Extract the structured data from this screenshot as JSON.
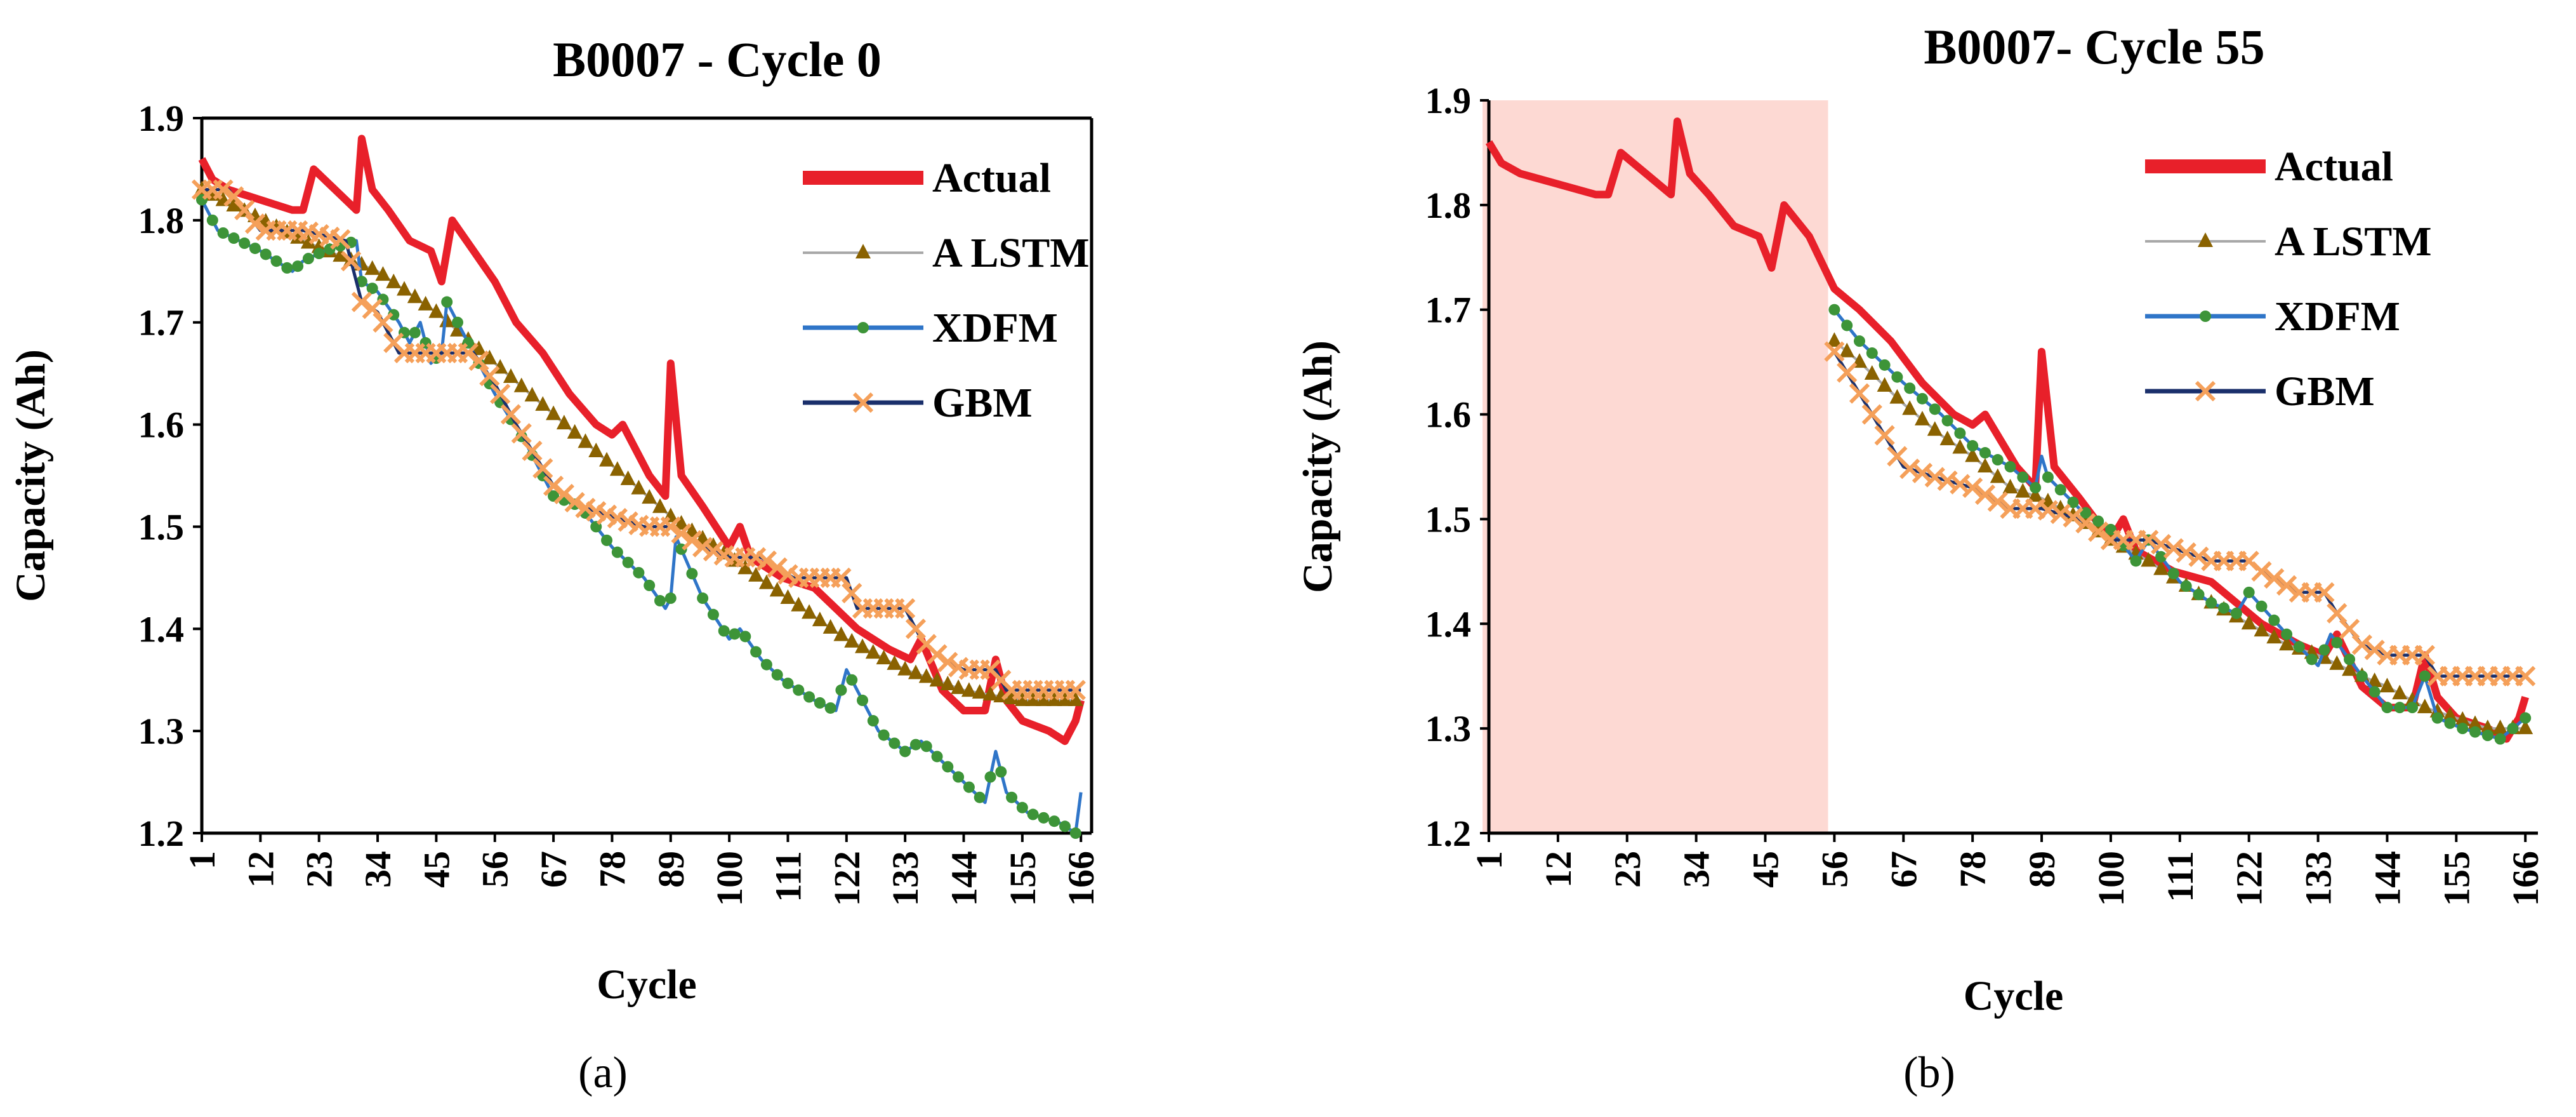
{
  "figure": {
    "panels": [
      "a",
      "b"
    ]
  },
  "chart_data": [
    {
      "type": "line",
      "panel": "a",
      "caption": "(a)",
      "title": "B0007 - Cycle 0",
      "xlabel": "Cycle",
      "ylabel": "Capacity (Ah)",
      "xlim": [
        1,
        168
      ],
      "ylim": [
        1.2,
        1.9
      ],
      "yticks": [
        "1.2",
        "1.3",
        "1.4",
        "1.5",
        "1.6",
        "1.7",
        "1.8",
        "1.9"
      ],
      "xticks": [
        "1",
        "12",
        "23",
        "34",
        "45",
        "56",
        "67",
        "78",
        "89",
        "100",
        "111",
        "122",
        "133",
        "144",
        "155",
        "166"
      ],
      "highlight_range": null,
      "legend": [
        "Actual",
        "A LSTM",
        "XDFM",
        "GBM"
      ],
      "colors": {
        "Actual": "#e8202a",
        "A LSTM": "#8a6200",
        "XDFM": "#3d9438",
        "GBM": "#f5a05a",
        "XDFM_line": "#2f75c8",
        "GBM_line": "#1a2f6b",
        "ALSTM_line": "#a8a8a8"
      },
      "series": [
        {
          "name": "Actual",
          "x": [
            1,
            3,
            6,
            12,
            18,
            20,
            22,
            26,
            30,
            31,
            33,
            36,
            40,
            44,
            46,
            48,
            52,
            56,
            60,
            65,
            70,
            75,
            78,
            80,
            85,
            88,
            89,
            91,
            95,
            100,
            102,
            104,
            110,
            116,
            120,
            124,
            130,
            134,
            136,
            140,
            144,
            148,
            150,
            152,
            155,
            160,
            163,
            165,
            166
          ],
          "y": [
            1.86,
            1.84,
            1.83,
            1.82,
            1.81,
            1.81,
            1.85,
            1.83,
            1.81,
            1.88,
            1.83,
            1.81,
            1.78,
            1.77,
            1.74,
            1.8,
            1.77,
            1.74,
            1.7,
            1.67,
            1.63,
            1.6,
            1.59,
            1.6,
            1.55,
            1.53,
            1.66,
            1.55,
            1.52,
            1.48,
            1.5,
            1.47,
            1.45,
            1.44,
            1.42,
            1.4,
            1.38,
            1.37,
            1.39,
            1.34,
            1.32,
            1.32,
            1.37,
            1.33,
            1.31,
            1.3,
            1.29,
            1.31,
            1.33
          ]
        },
        {
          "name": "A LSTM",
          "x": [
            1,
            20,
            34,
            45,
            56,
            67,
            78,
            89,
            100,
            111,
            122,
            133,
            144,
            155,
            166
          ],
          "y": [
            1.83,
            1.78,
            1.75,
            1.71,
            1.66,
            1.61,
            1.56,
            1.51,
            1.47,
            1.43,
            1.39,
            1.36,
            1.34,
            1.33,
            1.33
          ]
        },
        {
          "name": "XDFM",
          "x": [
            1,
            4,
            8,
            12,
            18,
            20,
            24,
            30,
            31,
            34,
            38,
            40,
            42,
            44,
            46,
            47,
            50,
            56,
            62,
            67,
            72,
            78,
            84,
            88,
            89,
            90,
            95,
            100,
            102,
            106,
            110,
            116,
            120,
            122,
            128,
            133,
            136,
            140,
            144,
            148,
            150,
            152,
            156,
            162,
            165,
            166
          ],
          "y": [
            1.82,
            1.79,
            1.78,
            1.77,
            1.75,
            1.76,
            1.77,
            1.78,
            1.74,
            1.73,
            1.7,
            1.68,
            1.7,
            1.66,
            1.67,
            1.72,
            1.69,
            1.63,
            1.58,
            1.53,
            1.52,
            1.48,
            1.45,
            1.42,
            1.43,
            1.49,
            1.43,
            1.39,
            1.4,
            1.37,
            1.35,
            1.33,
            1.32,
            1.36,
            1.3,
            1.28,
            1.29,
            1.27,
            1.25,
            1.23,
            1.28,
            1.24,
            1.22,
            1.21,
            1.2,
            1.24
          ]
        },
        {
          "name": "GBM",
          "x": [
            1,
            6,
            12,
            20,
            28,
            31,
            34,
            38,
            44,
            52,
            56,
            60,
            67,
            72,
            78,
            84,
            89,
            95,
            100,
            106,
            112,
            118,
            122,
            124,
            130,
            133,
            136,
            140,
            144,
            150,
            152,
            156,
            166
          ],
          "y": [
            1.83,
            1.83,
            1.79,
            1.79,
            1.78,
            1.72,
            1.71,
            1.67,
            1.67,
            1.67,
            1.64,
            1.6,
            1.54,
            1.52,
            1.51,
            1.5,
            1.5,
            1.48,
            1.47,
            1.47,
            1.45,
            1.45,
            1.45,
            1.42,
            1.42,
            1.42,
            1.39,
            1.37,
            1.36,
            1.36,
            1.34,
            1.34,
            1.34
          ]
        }
      ]
    },
    {
      "type": "line",
      "panel": "b",
      "caption": "(b)",
      "title": "B0007- Cycle 55",
      "xlabel": "Cycle",
      "ylabel": "Capacity (Ah)",
      "xlim": [
        1,
        168
      ],
      "ylim": [
        1.2,
        1.9
      ],
      "yticks": [
        "1.2",
        "1.3",
        "1.4",
        "1.5",
        "1.6",
        "1.7",
        "1.8",
        "1.9"
      ],
      "xticks": [
        "1",
        "12",
        "23",
        "34",
        "45",
        "56",
        "67",
        "78",
        "89",
        "100",
        "111",
        "122",
        "133",
        "144",
        "155",
        "166"
      ],
      "highlight_range": [
        1,
        55
      ],
      "legend": [
        "Actual",
        "A LSTM",
        "XDFM",
        "GBM"
      ],
      "colors": {
        "Actual": "#e8202a",
        "A LSTM": "#8a6200",
        "XDFM": "#3d9438",
        "GBM": "#f5a05a",
        "XDFM_line": "#2f75c8",
        "GBM_line": "#1a2f6b",
        "ALSTM_line": "#a8a8a8",
        "highlight": "#fdd9d3"
      },
      "series": [
        {
          "name": "Actual",
          "x": [
            1,
            3,
            6,
            12,
            18,
            20,
            22,
            26,
            30,
            31,
            33,
            36,
            40,
            44,
            46,
            48,
            52,
            56,
            60,
            65,
            70,
            75,
            78,
            80,
            85,
            88,
            89,
            91,
            95,
            100,
            102,
            104,
            110,
            116,
            120,
            124,
            130,
            134,
            136,
            140,
            144,
            148,
            150,
            152,
            155,
            160,
            163,
            165,
            166
          ],
          "y": [
            1.86,
            1.84,
            1.83,
            1.82,
            1.81,
            1.81,
            1.85,
            1.83,
            1.81,
            1.88,
            1.83,
            1.81,
            1.78,
            1.77,
            1.74,
            1.8,
            1.77,
            1.72,
            1.7,
            1.67,
            1.63,
            1.6,
            1.59,
            1.6,
            1.55,
            1.53,
            1.66,
            1.55,
            1.52,
            1.48,
            1.5,
            1.47,
            1.45,
            1.44,
            1.42,
            1.4,
            1.38,
            1.37,
            1.39,
            1.34,
            1.32,
            1.32,
            1.37,
            1.33,
            1.31,
            1.3,
            1.29,
            1.31,
            1.33
          ]
        },
        {
          "name": "A LSTM",
          "x": [
            56,
            60,
            67,
            73,
            78,
            84,
            89,
            95,
            100,
            106,
            111,
            116,
            122,
            128,
            133,
            140,
            144,
            150,
            155,
            160,
            166
          ],
          "y": [
            1.67,
            1.65,
            1.61,
            1.58,
            1.56,
            1.53,
            1.52,
            1.5,
            1.48,
            1.46,
            1.44,
            1.42,
            1.4,
            1.38,
            1.37,
            1.35,
            1.34,
            1.32,
            1.31,
            1.3,
            1.3
          ]
        },
        {
          "name": "XDFM",
          "x": [
            56,
            60,
            67,
            73,
            78,
            84,
            88,
            89,
            90,
            95,
            100,
            104,
            106,
            111,
            116,
            120,
            122,
            128,
            133,
            135,
            140,
            144,
            148,
            150,
            152,
            156,
            162,
            166
          ],
          "y": [
            1.7,
            1.67,
            1.63,
            1.6,
            1.57,
            1.55,
            1.53,
            1.56,
            1.54,
            1.51,
            1.49,
            1.46,
            1.48,
            1.44,
            1.42,
            1.41,
            1.43,
            1.39,
            1.36,
            1.39,
            1.35,
            1.32,
            1.32,
            1.35,
            1.31,
            1.3,
            1.29,
            1.31
          ]
        },
        {
          "name": "GBM",
          "x": [
            56,
            60,
            64,
            67,
            72,
            78,
            84,
            89,
            95,
            100,
            106,
            111,
            116,
            122,
            124,
            130,
            134,
            136,
            140,
            144,
            150,
            152,
            156,
            166
          ],
          "y": [
            1.66,
            1.62,
            1.58,
            1.55,
            1.54,
            1.53,
            1.51,
            1.51,
            1.5,
            1.48,
            1.48,
            1.47,
            1.46,
            1.46,
            1.45,
            1.43,
            1.43,
            1.41,
            1.38,
            1.37,
            1.37,
            1.35,
            1.35,
            1.35
          ]
        }
      ]
    }
  ]
}
